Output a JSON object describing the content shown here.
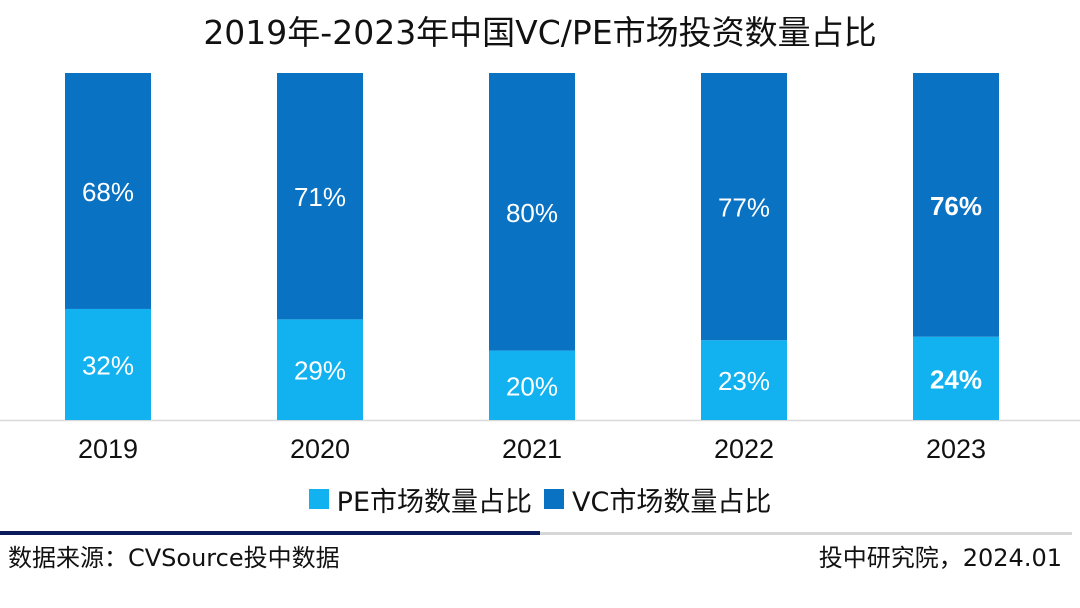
{
  "chart_data": {
    "type": "bar",
    "stacked": true,
    "title": "2019年-2023年中国VC/PE市场投资数量占比",
    "categories": [
      "2019",
      "2020",
      "2021",
      "2022",
      "2023"
    ],
    "series": [
      {
        "name": "PE市场数量占比",
        "values": [
          32,
          29,
          20,
          23,
          24
        ],
        "labels": [
          "32%",
          "29%",
          "20%",
          "23%",
          "24%"
        ],
        "color": "#12b2f0"
      },
      {
        "name": "VC市场数量占比",
        "values": [
          68,
          71,
          80,
          77,
          76
        ],
        "labels": [
          "68%",
          "71%",
          "80%",
          "77%",
          "76%"
        ],
        "color": "#0a72c2"
      }
    ],
    "ylim": [
      0,
      100
    ],
    "xlabel": "",
    "ylabel": "",
    "grid": false,
    "legend": "bottom",
    "bold_category": "2023"
  },
  "footer": {
    "source": "数据来源：CVSource投中数据",
    "credit": "投中研究院，2024.01"
  }
}
